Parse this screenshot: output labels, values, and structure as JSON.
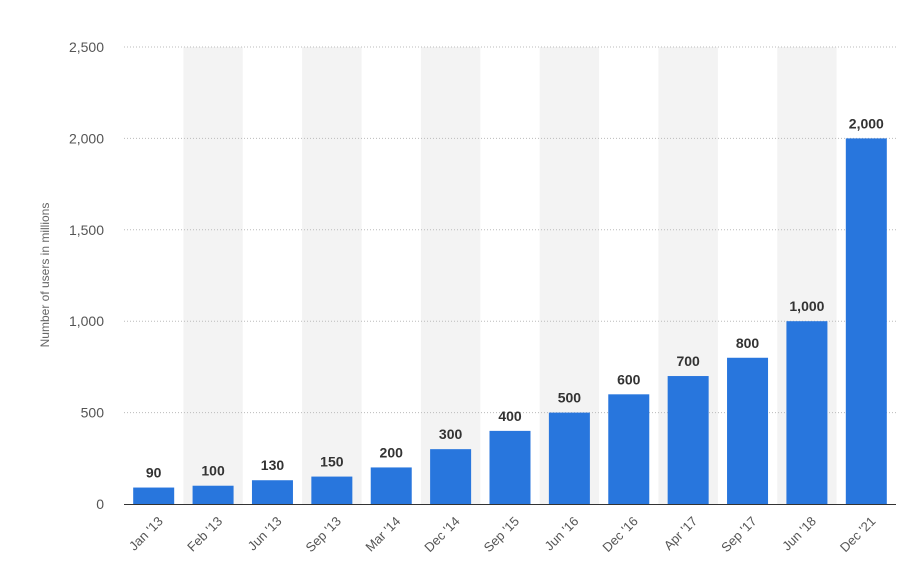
{
  "chart_data": {
    "type": "bar",
    "title": "",
    "xlabel": "",
    "ylabel": "Number of users in millions",
    "categories": [
      "Jan '13",
      "Feb '13",
      "Jun '13",
      "Sep '13",
      "Mar '14",
      "Dec '14",
      "Sep '15",
      "Jun '16",
      "Dec '16",
      "Apr '17",
      "Sep '17",
      "Jun '18",
      "Dec '21"
    ],
    "values": [
      90,
      100,
      130,
      150,
      200,
      300,
      400,
      500,
      600,
      700,
      800,
      1000,
      2000
    ],
    "data_labels": [
      "90",
      "100",
      "130",
      "150",
      "200",
      "300",
      "400",
      "500",
      "600",
      "700",
      "800",
      "1,000",
      "2,000"
    ],
    "ylim": [
      0,
      2500
    ],
    "yticks": [
      0,
      500,
      1000,
      1500,
      2000,
      2500
    ],
    "ytick_labels": [
      "0",
      "500",
      "1,000",
      "1,500",
      "2,000",
      "2,500"
    ],
    "grid": true,
    "legend": false,
    "colors": {
      "bar": "#2876dd",
      "band": "#f3f3f3",
      "grid": "#bbbbbb",
      "axis": "#333333"
    }
  }
}
